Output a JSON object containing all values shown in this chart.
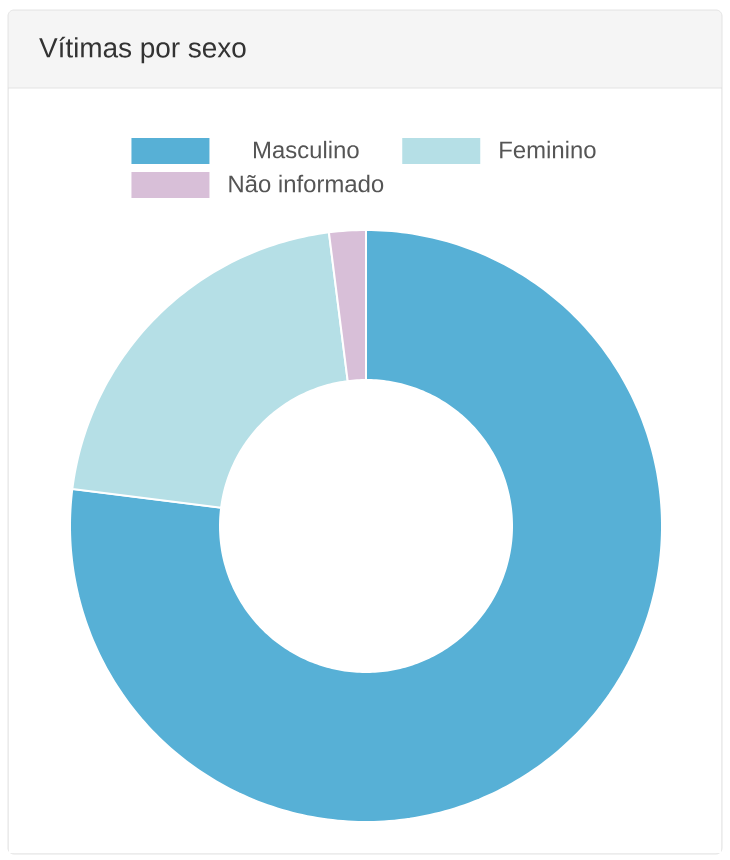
{
  "chart_data": {
    "type": "donut",
    "title": "Vítimas por sexo",
    "categories": [
      "Masculino",
      "Feminino",
      "Não informado"
    ],
    "values": [
      77,
      21,
      2
    ],
    "colors": [
      "#57b0d6",
      "#b5dfe6",
      "#d8bfd8"
    ],
    "legend": "top"
  }
}
